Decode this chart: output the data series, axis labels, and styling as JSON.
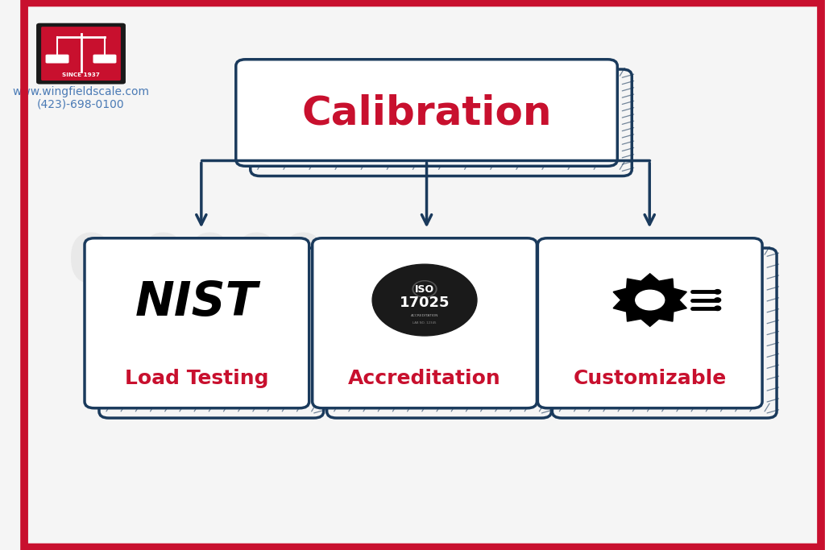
{
  "bg_color": "#f5f5f5",
  "border_color": "#c8102e",
  "box_stroke": "#1a3a5c",
  "title_text": "Calibration",
  "title_color": "#c8102e",
  "title_fontsize": 36,
  "title_fontweight": "bold",
  "sub_labels": [
    "Load Testing",
    "Accreditation",
    "Customizable"
  ],
  "sub_label_color": "#c8102e",
  "sub_label_fontsize": 18,
  "sub_label_fontweight": "bold",
  "nist_text": "NIST",
  "nist_color": "#000000",
  "nist_fontsize": 42,
  "nist_fontweight": "bold",
  "iso_bg": "#1a1a1a",
  "arrow_color": "#1a3a5c",
  "website": "www.wingfieldscale.com",
  "phone": "(423)-698-0100",
  "contact_color": "#4a7ab5",
  "contact_fontsize": 10,
  "logo_red": "#c8102e",
  "logo_black": "#1a1a1a"
}
